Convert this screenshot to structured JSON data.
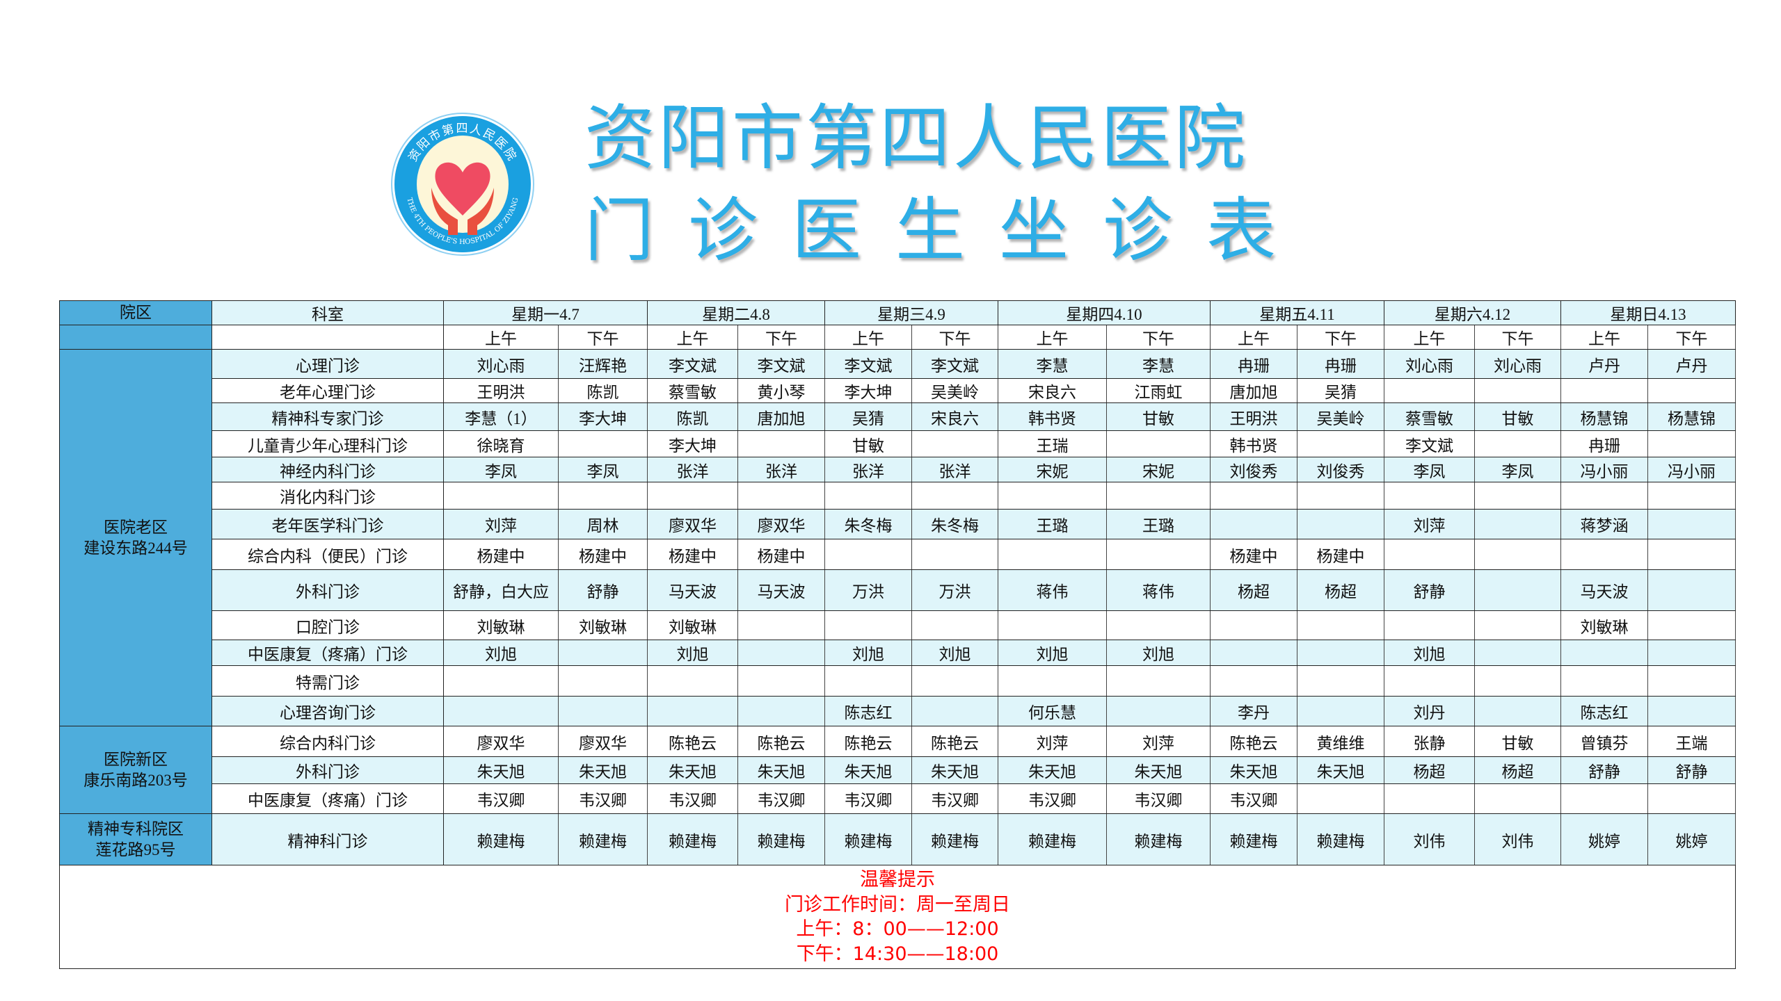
{
  "logo": {
    "text_cn": "资阳市第四人民医院",
    "text_en": "THE 4TH PEOPLE'S HOSPITAL OF ZIYANG",
    "colors": {
      "ring": "#1aa0e0",
      "center": "#fdf6d8",
      "heart": "#ef4b62",
      "hands": "#e9503f"
    }
  },
  "title": {
    "line1": "资阳市第四人民医院",
    "line2": "门诊医生坐诊表",
    "color": "#2eaee6"
  },
  "table": {
    "header": {
      "campus": "院区",
      "department": "科室"
    },
    "days": [
      {
        "label": "星期一4.7"
      },
      {
        "label": "星期二4.8"
      },
      {
        "label": "星期三4.9"
      },
      {
        "label": "星期四4.10"
      },
      {
        "label": "星期五4.11"
      },
      {
        "label": "星期六4.12"
      },
      {
        "label": "星期日4.13"
      }
    ],
    "am": "上午",
    "pm": "下午",
    "campuses": [
      {
        "lines": [
          "医院老区",
          "建设东路244号"
        ],
        "rows": [
          {
            "dept": "心理门诊",
            "cells": [
              "刘心雨",
              "汪辉艳",
              "李文斌",
              "李文斌",
              "李文斌",
              "李文斌",
              "李慧",
              "李慧",
              "冉珊",
              "冉珊",
              "刘心雨",
              "刘心雨",
              "卢丹",
              "卢丹"
            ]
          },
          {
            "dept": "老年心理门诊",
            "cells": [
              "王明洪",
              "陈凯",
              "蔡雪敏",
              "黄小琴",
              "李大坤",
              "吴美岭",
              "宋良六",
              "江雨虹",
              "唐加旭",
              "吴猜",
              "",
              "",
              "",
              ""
            ]
          },
          {
            "dept": "精神科专家门诊",
            "cells": [
              "李慧（1）",
              "李大坤",
              "陈凯",
              "唐加旭",
              "吴猜",
              "宋良六",
              "韩书贤",
              "甘敏",
              "王明洪",
              "吴美岭",
              "蔡雪敏",
              "甘敏",
              "杨慧锦",
              "杨慧锦"
            ]
          },
          {
            "dept": "儿童青少年心理科门诊",
            "cells": [
              "徐晓育",
              "",
              "李大坤",
              "",
              "甘敏",
              "",
              "王瑞",
              "",
              "韩书贤",
              "",
              "李文斌",
              "",
              "冉珊",
              ""
            ]
          },
          {
            "dept": "神经内科门诊",
            "cells": [
              "李凤",
              "李凤",
              "张洋",
              "张洋",
              "张洋",
              "张洋",
              "宋妮",
              "宋妮",
              "刘俊秀",
              "刘俊秀",
              "李凤",
              "李凤",
              "冯小丽",
              "冯小丽"
            ]
          },
          {
            "dept": "消化内科门诊",
            "cells": [
              "",
              "",
              "",
              "",
              "",
              "",
              "",
              "",
              "",
              "",
              "",
              "",
              "",
              ""
            ]
          },
          {
            "dept": "老年医学科门诊",
            "cells": [
              "刘萍",
              "周林",
              "廖双华",
              "廖双华",
              "朱冬梅",
              "朱冬梅",
              "王璐",
              "王璐",
              "",
              "",
              "刘萍",
              "",
              "蒋梦涵",
              ""
            ]
          },
          {
            "dept": "综合内科（便民）门诊",
            "cells": [
              "杨建中",
              "杨建中",
              "杨建中",
              "杨建中",
              "",
              "",
              "",
              "",
              "杨建中",
              "杨建中",
              "",
              "",
              "",
              ""
            ]
          },
          {
            "dept": "外科门诊",
            "cells": [
              "舒静，白大应",
              "舒静",
              "马天波",
              "马天波",
              "万洪",
              "万洪",
              "蒋伟",
              "蒋伟",
              "杨超",
              "杨超",
              "舒静",
              "",
              "马天波",
              ""
            ]
          },
          {
            "dept": "口腔门诊",
            "cells": [
              "刘敏琳",
              "刘敏琳",
              "刘敏琳",
              "",
              "",
              "",
              "",
              "",
              "",
              "",
              "",
              "",
              "刘敏琳",
              ""
            ]
          },
          {
            "dept": "中医康复（疼痛）门诊",
            "cells": [
              "刘旭",
              "",
              "刘旭",
              "",
              "刘旭",
              "刘旭",
              "刘旭",
              "刘旭",
              "",
              "",
              "刘旭",
              "",
              "",
              ""
            ]
          },
          {
            "dept": "特需门诊",
            "cells": [
              "",
              "",
              "",
              "",
              "",
              "",
              "",
              "",
              "",
              "",
              "",
              "",
              "",
              ""
            ]
          },
          {
            "dept": "心理咨询门诊",
            "cells": [
              "",
              "",
              "",
              "",
              "陈志红",
              "",
              "何乐慧",
              "",
              "李丹",
              "",
              "刘丹",
              "",
              "陈志红",
              ""
            ]
          }
        ]
      },
      {
        "lines": [
          "医院新区",
          "康乐南路203号"
        ],
        "rows": [
          {
            "dept": "综合内科门诊",
            "cells": [
              "廖双华",
              "廖双华",
              "陈艳云",
              "陈艳云",
              "陈艳云",
              "陈艳云",
              "刘萍",
              "刘萍",
              "陈艳云",
              "黄维维",
              "张静",
              "甘敏",
              "曾镇芬",
              "王端"
            ]
          },
          {
            "dept": "外科门诊",
            "cells": [
              "朱天旭",
              "朱天旭",
              "朱天旭",
              "朱天旭",
              "朱天旭",
              "朱天旭",
              "朱天旭",
              "朱天旭",
              "朱天旭",
              "朱天旭",
              "杨超",
              "杨超",
              "舒静",
              "舒静"
            ]
          },
          {
            "dept": "中医康复（疼痛）门诊",
            "cells": [
              "韦汉卿",
              "韦汉卿",
              "韦汉卿",
              "韦汉卿",
              "韦汉卿",
              "韦汉卿",
              "韦汉卿",
              "韦汉卿",
              "韦汉卿",
              "",
              "",
              "",
              "",
              ""
            ]
          }
        ]
      },
      {
        "lines": [
          "精神专科院区",
          "莲花路95号"
        ],
        "rows": [
          {
            "dept": "精神科门诊",
            "cells": [
              "赖建梅",
              "赖建梅",
              "赖建梅",
              "赖建梅",
              "赖建梅",
              "赖建梅",
              "赖建梅",
              "赖建梅",
              "赖建梅",
              "赖建梅",
              "刘伟",
              "刘伟",
              "姚婷",
              "姚婷"
            ]
          }
        ]
      }
    ]
  },
  "notice": {
    "title": "温馨提示",
    "hours": "门诊工作时间：周一至周日",
    "morning": "上午：8：00——12:00",
    "afternoon": "下午：14:30——18:00",
    "color": "#ff0000"
  }
}
